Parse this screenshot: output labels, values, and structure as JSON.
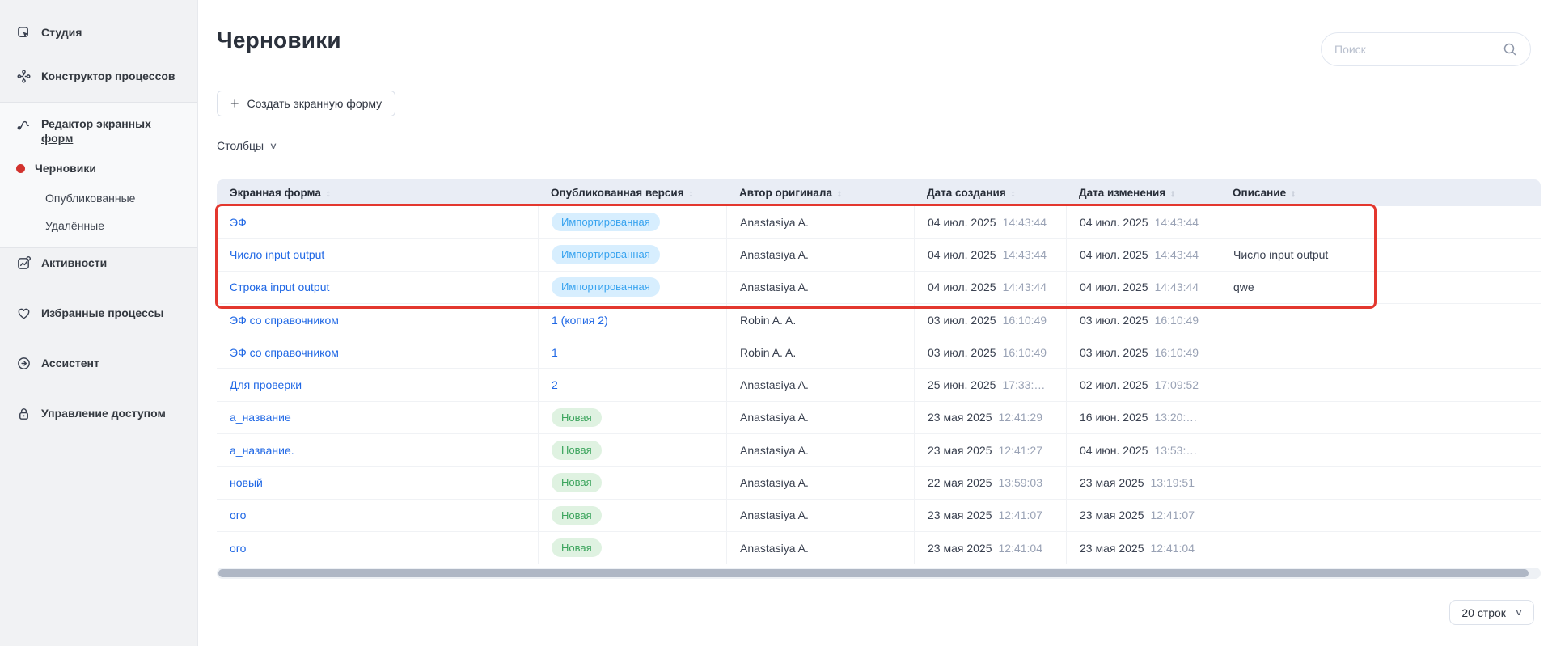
{
  "sidebar": {
    "items": [
      {
        "label": "Студия",
        "icon": "studio-icon",
        "type": "top"
      },
      {
        "label": "Конструктор процессов",
        "icon": "process-builder-icon",
        "type": "top"
      },
      {
        "label": "Редактор экранных форм",
        "icon": "form-editor-icon",
        "type": "top",
        "active": true
      },
      {
        "label": "Черновики",
        "type": "draft",
        "selected": true
      },
      {
        "label": "Опубликованные",
        "type": "sub"
      },
      {
        "label": "Удалённые",
        "type": "sub"
      },
      {
        "label": "Активности",
        "icon": "activities-icon",
        "type": "top"
      },
      {
        "label": "Избранные процессы",
        "icon": "heart-icon",
        "type": "top"
      },
      {
        "label": "Ассистент",
        "icon": "assistant-icon",
        "type": "top"
      },
      {
        "label": "Управление доступом",
        "icon": "lock-icon",
        "type": "top"
      }
    ]
  },
  "header": {
    "title": "Черновики",
    "search_placeholder": "Поиск"
  },
  "toolbar": {
    "create_button": "Создать экранную форму",
    "columns_dropdown": "Столбцы"
  },
  "table": {
    "columns": [
      "Экранная форма",
      "Опубликованная версия",
      "Автор оригинала",
      "Дата создания",
      "Дата изменения",
      "Описание"
    ],
    "highlighted_row_indexes": [
      0,
      1,
      2
    ],
    "rows": [
      {
        "form": "ЭФ",
        "version_kind": "badge_blue",
        "version": "Импортированная",
        "author": "Anastasiya A.",
        "created_date": "04 июл. 2025",
        "created_time": "14:43:44",
        "modified_date": "04 июл. 2025",
        "modified_time": "14:43:44",
        "description": ""
      },
      {
        "form": "Число input output",
        "version_kind": "badge_blue",
        "version": "Импортированная",
        "author": "Anastasiya A.",
        "created_date": "04 июл. 2025",
        "created_time": "14:43:44",
        "modified_date": "04 июл. 2025",
        "modified_time": "14:43:44",
        "description": "Число input output"
      },
      {
        "form": "Строка input output",
        "version_kind": "badge_blue",
        "version": "Импортированная",
        "author": "Anastasiya A.",
        "created_date": "04 июл. 2025",
        "created_time": "14:43:44",
        "modified_date": "04 июл. 2025",
        "modified_time": "14:43:44",
        "description": "qwe"
      },
      {
        "form": "ЭФ со справочником",
        "version_kind": "link",
        "version": "1 (копия 2)",
        "author": "Robin A. A.",
        "created_date": "03 июл. 2025",
        "created_time": "16:10:49",
        "modified_date": "03 июл. 2025",
        "modified_time": "16:10:49",
        "description": ""
      },
      {
        "form": "ЭФ со справочником",
        "version_kind": "link",
        "version": "1",
        "author": "Robin A. A.",
        "created_date": "03 июл. 2025",
        "created_time": "16:10:49",
        "modified_date": "03 июл. 2025",
        "modified_time": "16:10:49",
        "description": ""
      },
      {
        "form": "Для проверки",
        "version_kind": "link",
        "version": "2",
        "author": "Anastasiya A.",
        "created_date": "25 июн. 2025",
        "created_time": "17:33:…",
        "modified_date": "02 июл. 2025",
        "modified_time": "17:09:52",
        "description": ""
      },
      {
        "form": "а_название",
        "version_kind": "badge_green",
        "version": "Новая",
        "author": "Anastasiya A.",
        "created_date": "23 мая 2025",
        "created_time": "12:41:29",
        "modified_date": "16 июн. 2025",
        "modified_time": "13:20:…",
        "description": ""
      },
      {
        "form": "а_название.",
        "version_kind": "badge_green",
        "version": "Новая",
        "author": "Anastasiya A.",
        "created_date": "23 мая 2025",
        "created_time": "12:41:27",
        "modified_date": "04 июн. 2025",
        "modified_time": "13:53:…",
        "description": ""
      },
      {
        "form": "новый",
        "version_kind": "badge_green",
        "version": "Новая",
        "author": "Anastasiya A.",
        "created_date": "22 мая 2025",
        "created_time": "13:59:03",
        "modified_date": "23 мая 2025",
        "modified_time": "13:19:51",
        "description": ""
      },
      {
        "form": "ого",
        "version_kind": "badge_green",
        "version": "Новая",
        "author": "Anastasiya A.",
        "created_date": "23 мая 2025",
        "created_time": "12:41:07",
        "modified_date": "23 мая 2025",
        "modified_time": "12:41:07",
        "description": ""
      },
      {
        "form": "ого",
        "version_kind": "badge_green",
        "version": "Новая",
        "author": "Anastasiya A.",
        "created_date": "23 мая 2025",
        "created_time": "12:41:04",
        "modified_date": "23 мая 2025",
        "modified_time": "12:41:04",
        "description": ""
      }
    ]
  },
  "pagination": {
    "rows_per_page": "20 строк"
  },
  "icons": {
    "sort": "↕",
    "chevron_down": "∨",
    "plus": "+"
  },
  "colors": {
    "highlight_red": "#e3372e",
    "link_blue": "#2068e5",
    "badge_blue_bg": "#d7eefe",
    "badge_blue_text": "#38a3ef",
    "badge_green_bg": "#dff2e1",
    "badge_green_text": "#3ba45c",
    "table_header_bg": "#e9edf5",
    "sidebar_bg": "#f1f2f4",
    "red_dot": "#d2322d",
    "time_text": "#99a2b5"
  }
}
